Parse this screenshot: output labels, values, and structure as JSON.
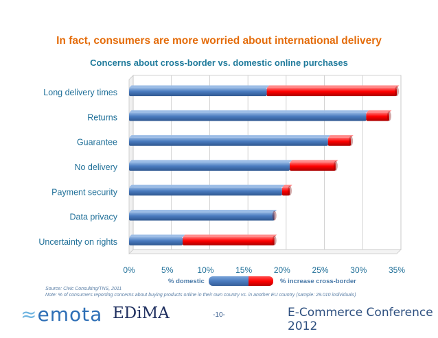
{
  "slide": {
    "title": "In fact, consumers are more worried about international delivery",
    "page_number": "-10-",
    "conference": "E-Commerce Conference 2012",
    "logo_left": "emota",
    "logo_right": "EDiMA"
  },
  "colors": {
    "domestic": "#4a7bbf",
    "increase": "#ff0000",
    "title": "#e46c0a",
    "subtitle": "#1f7a9b"
  },
  "chart_data": {
    "type": "bar",
    "orientation": "horizontal",
    "stacked": true,
    "title": "Concerns about cross-border vs. domestic online purchases",
    "categories": [
      "Long delivery times",
      "Returns",
      "Guarantee",
      "No delivery",
      "Payment security",
      "Data privacy",
      "Uncertainty on rights"
    ],
    "series": [
      {
        "name": "% domestic",
        "values": [
          18,
          31,
          26,
          21,
          20,
          19,
          7
        ]
      },
      {
        "name": "% increase cross-border",
        "values": [
          17,
          3,
          3,
          6,
          1,
          0,
          12
        ]
      }
    ],
    "xlim": [
      0,
      35
    ],
    "xticks": [
      "0%",
      "5%",
      "10%",
      "15%",
      "20%",
      "25%",
      "30%",
      "35%"
    ],
    "grid": true,
    "legend": "bottom"
  },
  "notes": {
    "source": "Source: Civic Consulting/TNS, 2011",
    "note": "Note: % of consumers reporting concerns about buying products online in their own country vs. in another EU country (sample: 29.010 individuals)"
  }
}
